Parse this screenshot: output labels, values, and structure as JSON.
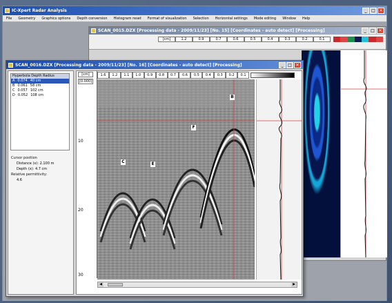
{
  "app": {
    "title": "IC-Xpert Radar Analysis",
    "min": "_",
    "max": "□",
    "close": "✕"
  },
  "menu": [
    "File",
    "Geometry",
    "Graphics options",
    "Depth conversion",
    "Histogram reset",
    "Format of visualization",
    "Selection",
    "Horizontal settings",
    "Mode editing",
    "Window",
    "Help"
  ],
  "back_window": {
    "title": "SCAN_0015.DZX  [Processing data - 2009/11/23]  [No. 15]  [Coordinates - auto detect]  [Processing]",
    "scale": [
      "1.2",
      "0.9",
      "0.7",
      "0.6",
      "0.5",
      "0.4",
      "0.3",
      "0.2",
      "0.1"
    ],
    "unit": "[cm]"
  },
  "front_window": {
    "title": "SCAN_0016.DZX  [Processing data - 2009/11/23]  [No. 16]  [Coordinates - auto detect]  [Processing]",
    "list_header": "Hyperbola  Depth  Radius",
    "list_rows": [
      {
        "id": "A",
        "depth": "0.074",
        "unit": "40 cm",
        "selected": true
      },
      {
        "id": "B",
        "depth": "0.061",
        "unit": "58 cm",
        "selected": false
      },
      {
        "id": "C",
        "depth": "0.057",
        "unit": "102 cm",
        "selected": false
      },
      {
        "id": "D",
        "depth": "0.052",
        "unit": "108 cm",
        "selected": false
      }
    ],
    "cursor_label": "Cursor position",
    "distance_label": "Distance (x):",
    "distance_value": "2.100 m",
    "depth_label": "Depth (x):",
    "depth_value": "4.7 cm",
    "permittivity_label": "Relative permittivity:",
    "permittivity_value": "4.6",
    "unit_top": "[cm]",
    "unit_sub": "[0.000]",
    "scale": [
      "1.6",
      "1.2",
      "1.1",
      "1.0",
      "0.9",
      "0.8",
      "0.7",
      "0.6",
      "0.5",
      "0.4",
      "0.3",
      "0.2",
      "0.1"
    ],
    "depth_ticks": [
      "10",
      "20",
      "30"
    ],
    "markers": [
      "C",
      "E",
      "F",
      "B"
    ]
  }
}
